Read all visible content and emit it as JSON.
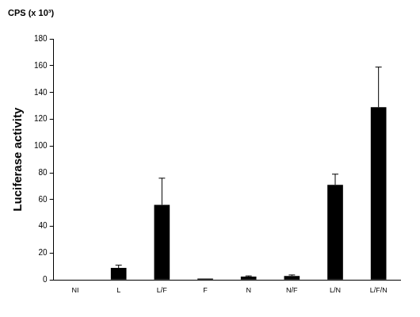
{
  "chart_data": {
    "type": "bar",
    "title": "CPS (x 10³)",
    "y_label": "Luciferase activity",
    "categories": [
      "NI",
      "L",
      "L/F",
      "F",
      "N",
      "N/F",
      "L/N",
      "L/F/N"
    ],
    "values": [
      0.2,
      9,
      56,
      1,
      2.5,
      3,
      71,
      129
    ],
    "errors": [
      null,
      2,
      20,
      null,
      0.5,
      0.7,
      8,
      30
    ],
    "color": "#000000",
    "ylim": [
      0,
      180
    ],
    "yticks": [
      0,
      20,
      40,
      60,
      80,
      100,
      120,
      140,
      160,
      180
    ],
    "grid": false
  }
}
